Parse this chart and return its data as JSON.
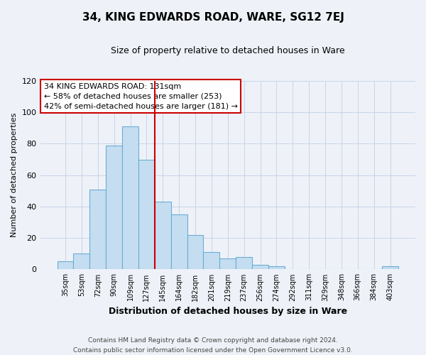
{
  "title": "34, KING EDWARDS ROAD, WARE, SG12 7EJ",
  "subtitle": "Size of property relative to detached houses in Ware",
  "xlabel": "Distribution of detached houses by size in Ware",
  "ylabel": "Number of detached properties",
  "categories": [
    "35sqm",
    "53sqm",
    "72sqm",
    "90sqm",
    "109sqm",
    "127sqm",
    "145sqm",
    "164sqm",
    "182sqm",
    "201sqm",
    "219sqm",
    "237sqm",
    "256sqm",
    "274sqm",
    "292sqm",
    "311sqm",
    "329sqm",
    "348sqm",
    "366sqm",
    "384sqm",
    "403sqm"
  ],
  "values": [
    5,
    10,
    51,
    79,
    91,
    70,
    43,
    35,
    22,
    11,
    7,
    8,
    3,
    2,
    0,
    0,
    0,
    0,
    0,
    0,
    2
  ],
  "bar_color": "#c5ddf0",
  "bar_edge_color": "#6aadd5",
  "vline_color": "#cc0000",
  "ylim": [
    0,
    120
  ],
  "yticks": [
    0,
    20,
    40,
    60,
    80,
    100,
    120
  ],
  "annotation_box_text": "34 KING EDWARDS ROAD: 131sqm\n← 58% of detached houses are smaller (253)\n42% of semi-detached houses are larger (181) →",
  "footer_line1": "Contains HM Land Registry data © Crown copyright and database right 2024.",
  "footer_line2": "Contains public sector information licensed under the Open Government Licence v3.0.",
  "background_color": "#eef2f8",
  "plot_background_color": "#eef2f8",
  "grid_color": "#c8d4e8"
}
